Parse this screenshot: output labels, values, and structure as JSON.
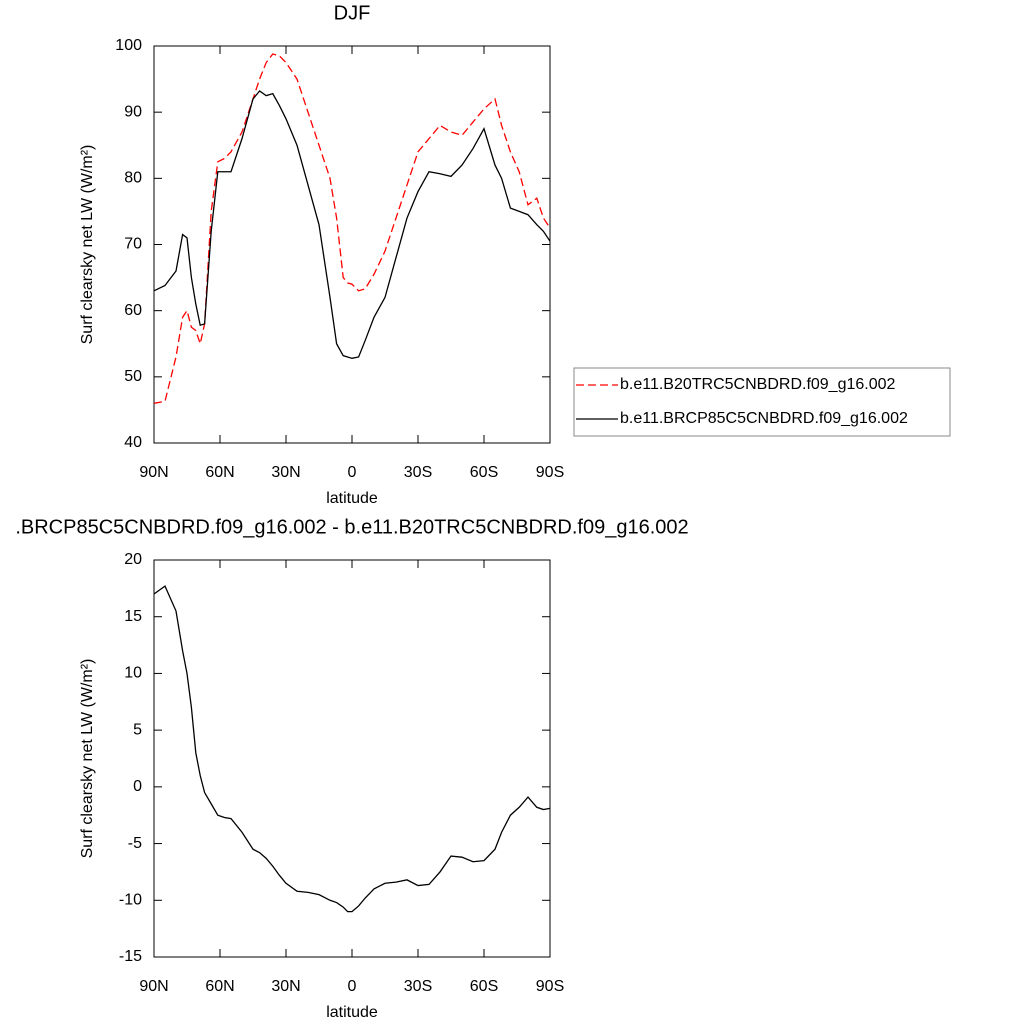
{
  "chart_data": [
    {
      "type": "line",
      "title": "DJF",
      "x_label": "latitude",
      "y_label": "Surf clearsky net LW (W/m²)",
      "x": [
        90,
        85,
        80,
        77,
        75,
        73,
        71,
        69,
        67,
        64,
        61,
        58,
        55,
        50,
        45,
        42,
        39,
        36,
        33,
        30,
        25,
        20,
        15,
        10,
        7,
        4,
        2,
        0,
        -3,
        -6,
        -10,
        -15,
        -20,
        -25,
        -30,
        -35,
        -40,
        -45,
        -50,
        -55,
        -60,
        -65,
        -68,
        -72,
        -76,
        -80,
        -84,
        -87,
        -90
      ],
      "series": [
        {
          "name": "b.e11.B20TRC5CNBDRD.f09_g16.002",
          "color": "#ff0000",
          "line_style": "dashed",
          "values": [
            46,
            46.3,
            53,
            59,
            60,
            57.5,
            57,
            55,
            58,
            75,
            82.5,
            83,
            84,
            87,
            92,
            95,
            97.5,
            98.8,
            98.5,
            97.5,
            95,
            90,
            85,
            80,
            74,
            65,
            64.2,
            64,
            63,
            63.3,
            65.5,
            69,
            74,
            79,
            84,
            86,
            88,
            87,
            86.5,
            88.5,
            90.5,
            92,
            88,
            84,
            81,
            76,
            77,
            74,
            72.5
          ]
        },
        {
          "name": "b.e11.BRCP85C5CNBDRD.f09_g16.002",
          "color": "#000000",
          "line_style": "solid",
          "values": [
            63,
            63.8,
            66,
            71.5,
            71,
            65,
            61,
            57.8,
            58,
            72,
            81,
            81,
            81,
            86,
            92,
            93.2,
            92.5,
            92.8,
            91,
            89,
            85,
            79,
            73,
            62,
            55,
            53.2,
            53,
            52.8,
            53,
            55.5,
            59,
            62,
            68,
            74,
            78,
            81,
            80.7,
            80.3,
            82,
            84.5,
            87.5,
            82,
            80,
            75.5,
            75,
            74.5,
            73,
            72,
            70.5
          ]
        }
      ],
      "xlim": [
        90,
        -90
      ],
      "xticks": [
        {
          "value": 90,
          "label": "90N"
        },
        {
          "value": 60,
          "label": "60N"
        },
        {
          "value": 30,
          "label": "30N"
        },
        0,
        {
          "value": -30,
          "label": "30S"
        },
        {
          "value": -60,
          "label": "60S"
        },
        {
          "value": -90,
          "label": "90S"
        }
      ],
      "ylim": [
        40,
        100
      ],
      "yticks": [
        40,
        50,
        60,
        70,
        80,
        90,
        100
      ],
      "legend": "right"
    },
    {
      "type": "line",
      "title": ".BRCP85C5CNBDRD.f09_g16.002 - b.e11.B20TRC5CNBDRD.f09_g16.002",
      "x_label": "latitude",
      "y_label": "Surf clearsky net LW (W/m²)",
      "x": [
        90,
        85,
        80,
        77,
        75,
        73,
        71,
        69,
        67,
        64,
        61,
        58,
        55,
        50,
        45,
        42,
        39,
        36,
        33,
        30,
        25,
        20,
        15,
        10,
        7,
        4,
        2,
        0,
        -3,
        -6,
        -10,
        -15,
        -20,
        -25,
        -30,
        -35,
        -40,
        -45,
        -50,
        -55,
        -60,
        -65,
        -68,
        -72,
        -76,
        -80,
        -84,
        -87,
        -90
      ],
      "series": [
        {
          "color": "#000000",
          "line_style": "solid",
          "values": [
            17,
            17.7,
            15.5,
            12,
            10,
            7,
            3,
            1,
            -0.5,
            -1.5,
            -2.5,
            -2.7,
            -2.8,
            -4,
            -5.5,
            -5.8,
            -6.3,
            -7,
            -7.8,
            -8.5,
            -9.2,
            -9.3,
            -9.5,
            -10,
            -10.2,
            -10.6,
            -11,
            -11,
            -10.5,
            -9.8,
            -9,
            -8.5,
            -8.4,
            -8.2,
            -8.7,
            -8.6,
            -7.5,
            -6.1,
            -6.2,
            -6.6,
            -6.5,
            -5.5,
            -4,
            -2.5,
            -1.8,
            -0.9,
            -1.8,
            -2,
            -1.9
          ]
        }
      ],
      "xlim": [
        90,
        -90
      ],
      "xticks": [
        {
          "value": 90,
          "label": "90N"
        },
        {
          "value": 60,
          "label": "60N"
        },
        {
          "value": 30,
          "label": "30N"
        },
        0,
        {
          "value": -30,
          "label": "30S"
        },
        {
          "value": -60,
          "label": "60S"
        },
        {
          "value": -90,
          "label": "90S"
        }
      ],
      "ylim": [
        -15,
        20
      ],
      "yticks": [
        -15,
        -10,
        -5,
        0,
        5,
        10,
        15,
        20
      ]
    }
  ]
}
